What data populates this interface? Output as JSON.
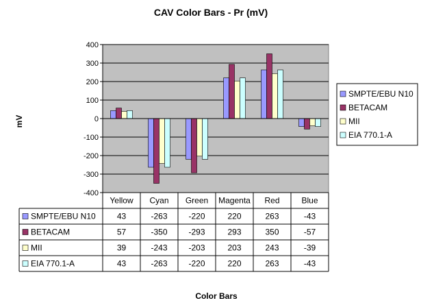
{
  "chart_data": {
    "type": "bar",
    "title": "CAV Color Bars - Pr (mV)",
    "xlabel": "Color Bars",
    "ylabel": "mV",
    "categories": [
      "Yellow",
      "Cyan",
      "Green",
      "Magenta",
      "Red",
      "Blue"
    ],
    "ylim": [
      -400,
      400
    ],
    "yticks": [
      -400,
      -300,
      -200,
      -100,
      0,
      100,
      200,
      300,
      400
    ],
    "grid": true,
    "legend_position": "right",
    "data_table": true,
    "series": [
      {
        "name": "SMPTE/EBU N10",
        "color": "#9999ff",
        "values": [
          43,
          -263,
          -220,
          220,
          263,
          -43
        ]
      },
      {
        "name": "BETACAM",
        "color": "#993366",
        "values": [
          57,
          -350,
          -293,
          293,
          350,
          -57
        ]
      },
      {
        "name": "MII",
        "color": "#ffffcc",
        "values": [
          39,
          -243,
          -203,
          203,
          243,
          -39
        ]
      },
      {
        "name": "EIA 770.1-A",
        "color": "#ccffff",
        "values": [
          43,
          -263,
          -220,
          220,
          263,
          -43
        ]
      }
    ],
    "colors": {
      "plot_background": "#c0c0c0",
      "gridline": "#000000"
    }
  }
}
